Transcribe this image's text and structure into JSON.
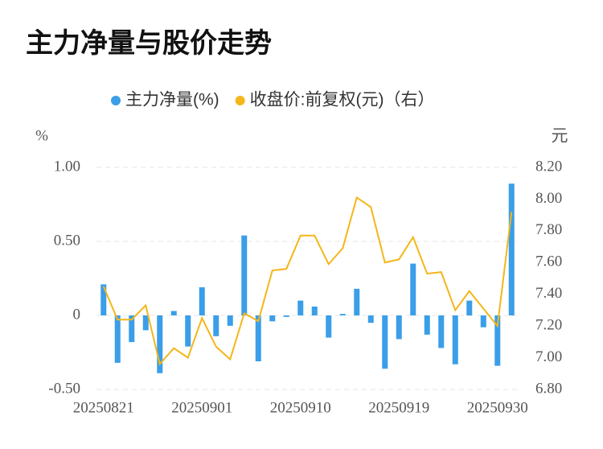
{
  "chart_data": {
    "type": "bar+line",
    "title": "主力净量与股价走势",
    "y_label": "%",
    "y2_label": "元",
    "categories": [
      "20250821",
      null,
      null,
      null,
      null,
      null,
      null,
      "20250901",
      null,
      null,
      null,
      null,
      null,
      null,
      "20250910",
      null,
      null,
      null,
      null,
      null,
      null,
      "20250919",
      null,
      null,
      null,
      null,
      null,
      null,
      "20250930",
      null
    ],
    "series": [
      {
        "name": "主力净量(%)",
        "type": "bar",
        "color": "#3a9ee8",
        "values": [
          0.21,
          -0.32,
          -0.18,
          -0.1,
          -0.39,
          0.03,
          -0.21,
          0.19,
          -0.14,
          -0.07,
          0.54,
          -0.31,
          -0.04,
          -0.01,
          0.1,
          0.06,
          -0.15,
          0.01,
          0.18,
          -0.05,
          -0.36,
          -0.16,
          0.35,
          -0.13,
          -0.22,
          -0.33,
          0.1,
          -0.08,
          -0.34,
          0.89
        ]
      },
      {
        "name": "收盘价:前复权(元)（右）",
        "type": "line",
        "axis": "y2",
        "color": "#f4b619",
        "values": [
          7.45,
          7.24,
          7.24,
          7.33,
          6.96,
          7.06,
          7.0,
          7.25,
          7.07,
          6.99,
          7.28,
          7.23,
          7.55,
          7.56,
          7.77,
          7.77,
          7.59,
          7.69,
          8.01,
          7.95,
          7.6,
          7.62,
          7.76,
          7.53,
          7.54,
          7.3,
          7.42,
          7.31,
          7.2,
          7.92
        ]
      }
    ],
    "ylim": [
      -0.5,
      1.0
    ],
    "yticks": [
      {
        "value": -0.5,
        "label": "-0.50"
      },
      0,
      {
        "value": 0.5,
        "label": "0.50"
      },
      {
        "value": 1.0,
        "label": "1.00"
      }
    ],
    "y2lim": [
      6.8,
      8.2
    ],
    "y2ticks": [
      {
        "value": 6.8,
        "label": "6.80"
      },
      {
        "value": 7.0,
        "label": "7.00"
      },
      {
        "value": 7.2,
        "label": "7.20"
      },
      {
        "value": 7.4,
        "label": "7.40"
      },
      {
        "value": 7.6,
        "label": "7.60"
      },
      {
        "value": 7.8,
        "label": "7.80"
      },
      {
        "value": 8.0,
        "label": "8.00"
      },
      {
        "value": 8.2,
        "label": "8.20"
      }
    ],
    "grid": true
  }
}
